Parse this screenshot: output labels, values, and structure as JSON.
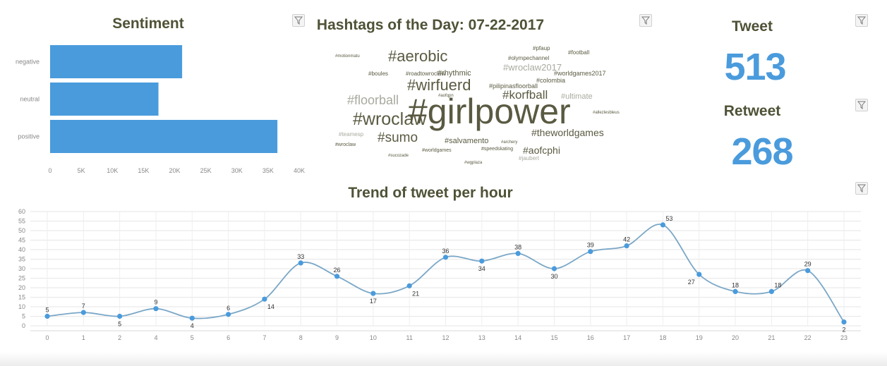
{
  "colors": {
    "accent": "#4a9bdc",
    "title": "#4f5236",
    "wordcloud": "#5a5a42"
  },
  "sentiment": {
    "title": "Sentiment"
  },
  "wordcloud": {
    "title": "Hashtags of the Day: 07-22-2017"
  },
  "tweet": {
    "label": "Tweet",
    "value": "513"
  },
  "retweet": {
    "label": "Retweet",
    "value": "268"
  },
  "trend": {
    "title": "Trend of tweet per hour"
  },
  "icons": {
    "filter": "filter-icon"
  },
  "chart_data": [
    {
      "type": "bar",
      "orientation": "horizontal",
      "categories": [
        "negative",
        "neutral",
        "positive"
      ],
      "values": [
        21200,
        17400,
        36500
      ],
      "xlim": [
        0,
        40000
      ],
      "xticks": [
        "0",
        "5K",
        "10K",
        "15K",
        "20K",
        "25K",
        "30K",
        "35K",
        "40K"
      ],
      "title": "Sentiment"
    },
    {
      "type": "line",
      "title": "Trend of tweet per hour",
      "x": [
        "0",
        "1",
        "2",
        "4",
        "5",
        "6",
        "7",
        "8",
        "9",
        "10",
        "11",
        "12",
        "13",
        "14",
        "15",
        "16",
        "17",
        "18",
        "19",
        "20",
        "21",
        "22",
        "23"
      ],
      "values": [
        5,
        7,
        5,
        9,
        4,
        6,
        14,
        33,
        26,
        17,
        21,
        36,
        34,
        38,
        30,
        39,
        42,
        53,
        27,
        18,
        18,
        29,
        2
      ],
      "ylim": [
        0,
        60
      ],
      "yticks": [
        0,
        5,
        10,
        15,
        20,
        25,
        30,
        35,
        40,
        45,
        50,
        55,
        60
      ],
      "grid": true
    }
  ],
  "hashtags": [
    {
      "text": "#girlpower",
      "size": 50
    },
    {
      "text": "#wroclaw",
      "size": 25
    },
    {
      "text": "#aerobic",
      "size": 22
    },
    {
      "text": "#wirfuerd",
      "size": 22
    },
    {
      "text": "#floorball",
      "size": 18
    },
    {
      "text": "#sumo",
      "size": 19
    },
    {
      "text": "#korfball",
      "size": 17
    },
    {
      "text": "#theworldgames",
      "size": 14
    },
    {
      "text": "#aofcphi",
      "size": 14
    },
    {
      "text": "#wroclaw2017",
      "size": 13
    },
    {
      "text": "#rhythmic",
      "size": 11
    },
    {
      "text": "#salvamento",
      "size": 11
    },
    {
      "text": "#ultimate",
      "size": 11
    },
    {
      "text": "#worldgames2017",
      "size": 9
    },
    {
      "text": "#colombia",
      "size": 9
    },
    {
      "text": "#pilipinasfloorball",
      "size": 9
    },
    {
      "text": "#olympechannel",
      "size": 8
    },
    {
      "text": "#pfaup",
      "size": 8
    },
    {
      "text": "#football",
      "size": 8
    },
    {
      "text": "#roadtowroclaw",
      "size": 8
    },
    {
      "text": "#boules",
      "size": 8
    },
    {
      "text": "#jaubert",
      "size": 8
    },
    {
      "text": "#speedskating",
      "size": 7
    },
    {
      "text": "#worldgames",
      "size": 7
    },
    {
      "text": "#teamesp",
      "size": 8
    },
    {
      "text": "#wroclaw",
      "size": 7
    },
    {
      "text": "#archery",
      "size": 6
    },
    {
      "text": "#sucozade",
      "size": 6
    },
    {
      "text": "#allezlesbleus",
      "size": 6
    },
    {
      "text": "#motionmatu",
      "size": 6
    },
    {
      "text": "#aofqpn",
      "size": 6
    },
    {
      "text": "#wgplaza",
      "size": 6
    }
  ]
}
